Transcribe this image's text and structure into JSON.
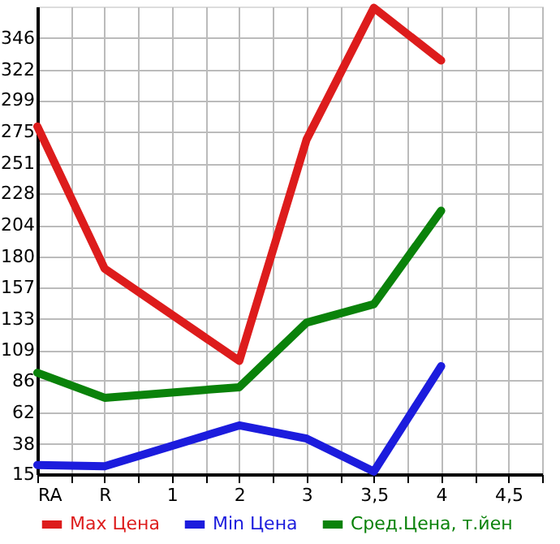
{
  "chart_data": {
    "type": "line",
    "categories": [
      "RA",
      "R",
      "1",
      "2",
      "3",
      "3,5",
      "4",
      "4,5"
    ],
    "series": [
      {
        "name": "Max Цена",
        "color": "#dd1c1c",
        "values": [
          279,
          171,
          null,
          101,
          269,
          369,
          329,
          null
        ]
      },
      {
        "name": "Min Цена",
        "color": "#1c1cdd",
        "values": [
          22,
          21,
          null,
          52,
          42,
          17,
          97,
          null
        ]
      },
      {
        "name": "Сред.Цена, т.йен",
        "color": "#0a820a",
        "values": [
          92,
          73,
          null,
          81,
          130,
          144,
          215,
          null
        ]
      }
    ],
    "ylim": [
      15,
      370
    ],
    "yticks": [
      15,
      38,
      62,
      86,
      109,
      133,
      157,
      180,
      204,
      228,
      251,
      275,
      299,
      322,
      346
    ],
    "grid": true,
    "legend": "bottom",
    "marker": "none",
    "line_style": "solid"
  }
}
